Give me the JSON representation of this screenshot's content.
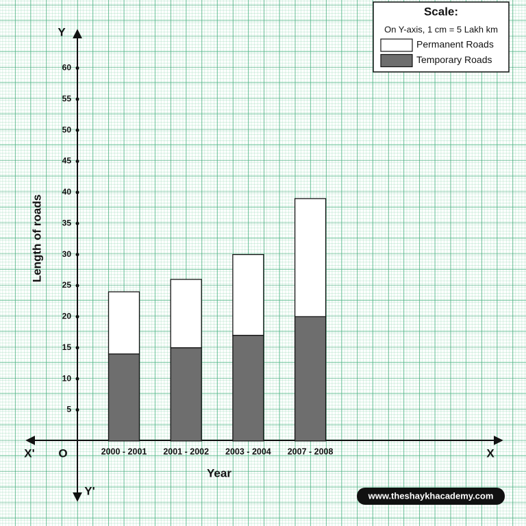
{
  "chart_data": {
    "type": "bar",
    "stacked": true,
    "x_label": "Year",
    "y_label": "Length of roads",
    "axis_letters": {
      "y": "Y",
      "y_negative": "Y'",
      "x": "X",
      "x_negative": "X'",
      "origin": "O"
    },
    "categories": [
      "2000 - 2001",
      "2001 - 2002",
      "2003 - 2004",
      "2007 - 2008"
    ],
    "series": [
      {
        "name": "Temporary Roads",
        "color": "#6e6e6e",
        "values": [
          14,
          15,
          17,
          20
        ]
      },
      {
        "name": "Permanent Roads",
        "color": "#ffffff",
        "values": [
          10,
          11,
          13,
          19
        ]
      }
    ],
    "ylim": [
      -9.5,
      66
    ],
    "yticks": [
      5,
      10,
      15,
      20,
      25,
      30,
      35,
      40,
      45,
      50,
      55,
      60
    ],
    "legend_title": "Scale:",
    "legend_note": "On Y-axis, 1 cm = 5 Lakh km",
    "legend_position": "top-right"
  },
  "watermark": "www.theshaykhacademy.com"
}
